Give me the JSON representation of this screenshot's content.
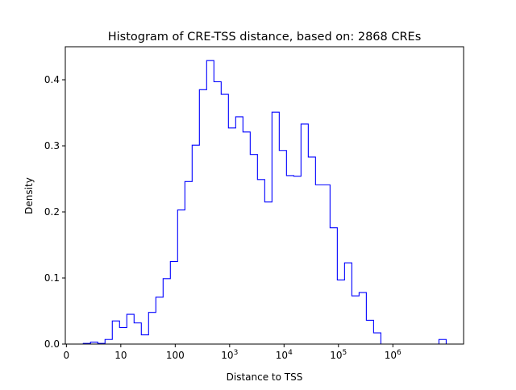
{
  "chart_data": {
    "type": "histogram",
    "title": "Histogram of CRE-TSS distance, based on: 2868 CREs",
    "xlabel": "Distance to TSS",
    "ylabel": "Density",
    "xscale": "log10",
    "x_ticks": [
      {
        "value": 0,
        "label": "0",
        "sup": ""
      },
      {
        "value": 1,
        "label": "10",
        "sup": ""
      },
      {
        "value": 2,
        "label": "100",
        "sup": ""
      },
      {
        "value": 3,
        "label": "10",
        "sup": "3"
      },
      {
        "value": 4,
        "label": "10",
        "sup": "4"
      },
      {
        "value": 5,
        "label": "10",
        "sup": "5"
      },
      {
        "value": 6,
        "label": "10",
        "sup": "6"
      }
    ],
    "y_ticks": [
      {
        "value": 0.0,
        "label": "0.0"
      },
      {
        "value": 0.1,
        "label": "0.1"
      },
      {
        "value": 0.2,
        "label": "0.2"
      },
      {
        "value": 0.3,
        "label": "0.3"
      },
      {
        "value": 0.4,
        "label": "0.4"
      }
    ],
    "xlim_log10": [
      -0.02,
      7.3
    ],
    "ylim": [
      0,
      0.45
    ],
    "bin_start_log10": 0.31,
    "bin_width_log10": 0.1334,
    "values": [
      0.001,
      0.003,
      0.001,
      0.007,
      0.035,
      0.025,
      0.045,
      0.032,
      0.014,
      0.048,
      0.071,
      0.099,
      0.125,
      0.203,
      0.246,
      0.301,
      0.385,
      0.429,
      0.397,
      0.378,
      0.327,
      0.344,
      0.321,
      0.287,
      0.249,
      0.215,
      0.351,
      0.293,
      0.255,
      0.254,
      0.333,
      0.283,
      0.241,
      0.241,
      0.176,
      0.097,
      0.123,
      0.073,
      0.078,
      0.036,
      0.017,
      0,
      0,
      0,
      0,
      0,
      0,
      0,
      0,
      0.007
    ],
    "line_color": "#0000ff",
    "grid": false,
    "legend": "none"
  }
}
